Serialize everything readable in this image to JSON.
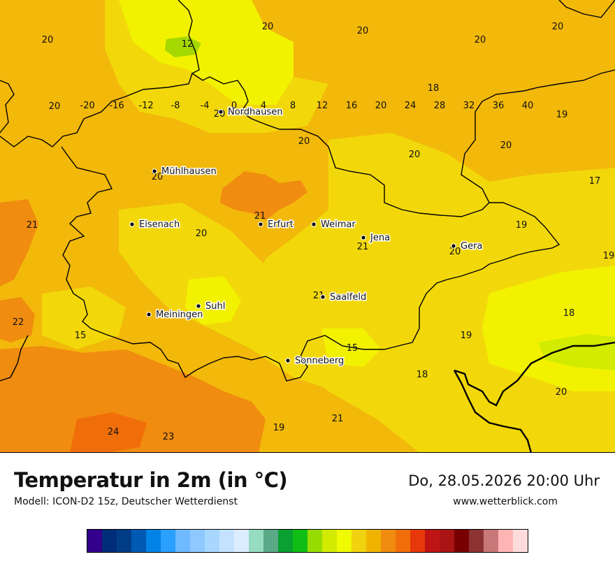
{
  "map": {
    "cities": [
      {
        "name": "Nordhausen"
      },
      {
        "name": "Mühlhausen"
      },
      {
        "name": "Eisenach"
      },
      {
        "name": "Erfurt"
      },
      {
        "name": "Weimar"
      },
      {
        "name": "Jena"
      },
      {
        "name": "Gera"
      },
      {
        "name": "Saalfeld"
      },
      {
        "name": "Suhl"
      },
      {
        "name": "Meiningen"
      },
      {
        "name": "Sonneberg"
      }
    ],
    "values": [
      "20",
      "12",
      "20",
      "20",
      "20",
      "20",
      "18",
      "20",
      "19",
      "20",
      "20",
      "20",
      "20",
      "17",
      "21",
      "21",
      "20",
      "19",
      "21",
      "20",
      "20",
      "19",
      "21",
      "22",
      "15",
      "18",
      "19",
      "15",
      "18",
      "20",
      "24",
      "23",
      "19",
      "21"
    ]
  },
  "footer": {
    "title": "Temperatur in 2m (in °C)",
    "model": "Modell: ICON-D2 15z, Deutscher Wetterdienst",
    "datetime": "Do, 28.05.2026 20:00 Uhr",
    "website": "www.wetterblick.com"
  },
  "legend": {
    "ticks": [
      "-20",
      "-16",
      "-12",
      "-8",
      "-4",
      "0",
      "4",
      "8",
      "12",
      "16",
      "20",
      "24",
      "28",
      "32",
      "36",
      "40"
    ],
    "colors": [
      "#32008a",
      "#002d78",
      "#003d86",
      "#005ab4",
      "#0082e6",
      "#2aa0ff",
      "#6eb9ff",
      "#8ec8ff",
      "#a7d6ff",
      "#c4e2ff",
      "#dcecff",
      "#96dcc0",
      "#5aaa88",
      "#0aa032",
      "#0fbe14",
      "#96dc00",
      "#d2eb00",
      "#f0fa00",
      "#f0d20f",
      "#f0b400",
      "#f08c0f",
      "#f06e0a",
      "#e6380a",
      "#be1414",
      "#aa1414",
      "#780000",
      "#8c3232",
      "#c87878",
      "#ffb4b4",
      "#ffdcdc"
    ]
  }
}
